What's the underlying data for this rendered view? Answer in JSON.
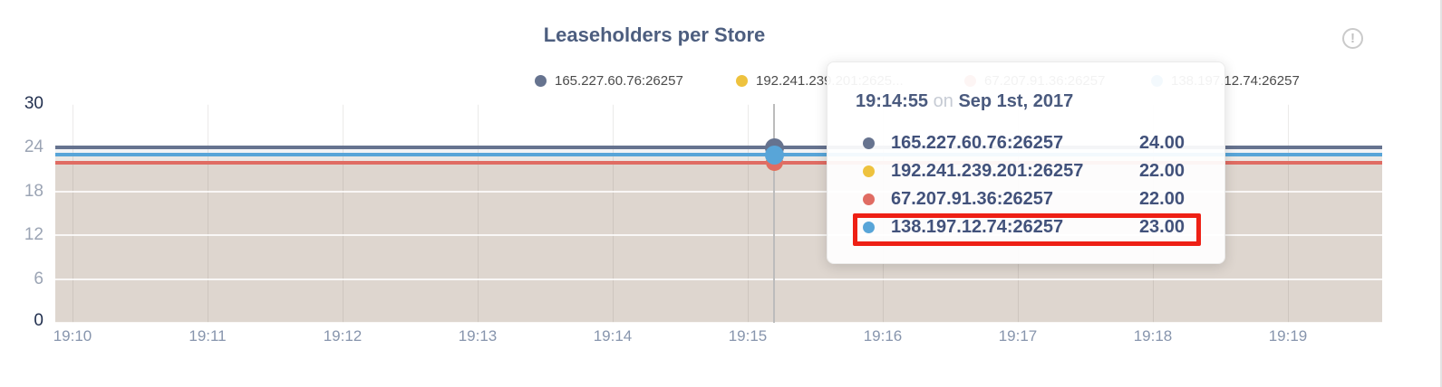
{
  "header": {
    "title": "Leaseholders per Store",
    "info_icon": "!"
  },
  "legend": {
    "items": [
      {
        "label": "165.227.60.76:26257",
        "color": "#66738f"
      },
      {
        "label": "192.241.239.201:2625...",
        "color": "#eec23e"
      },
      {
        "label": "67.207.91.36:26257",
        "color": "#e06c63"
      },
      {
        "label": "138.197.12.74:26257",
        "color": "#58a5d8"
      }
    ]
  },
  "chart_data": {
    "type": "line",
    "title": "Leaseholders per Store",
    "x_ticks": [
      "19:10",
      "19:11",
      "19:12",
      "19:13",
      "19:14",
      "19:15",
      "19:16",
      "19:17",
      "19:18",
      "19:19"
    ],
    "y_ticks": [
      30,
      24,
      18,
      12,
      6,
      0
    ],
    "ylim": [
      0,
      30
    ],
    "grid": true,
    "legend_position": "top",
    "series": [
      {
        "name": "165.227.60.76:26257",
        "color": "#66738f",
        "value": 24,
        "shape": "constant"
      },
      {
        "name": "192.241.239.201:26257",
        "color": "#eec23e",
        "value": 22,
        "shape": "constant"
      },
      {
        "name": "67.207.91.36:26257",
        "color": "#e06c63",
        "value": 22,
        "shape": "constant"
      },
      {
        "name": "138.197.12.74:26257",
        "color": "#58a5d8",
        "value": 23,
        "shape": "constant"
      }
    ],
    "area_colors": {
      "under_22": "#ded6cf",
      "band_22_23": "#ebe8e4",
      "band_23_24": "#f2f3f5"
    },
    "hover_time": "19:14:55"
  },
  "tooltip": {
    "time": "19:14:55",
    "conjunction": "on",
    "date": "Sep 1st, 2017",
    "rows": [
      {
        "name": "165.227.60.76:26257",
        "value": "24.00",
        "color": "#66738f"
      },
      {
        "name": "192.241.239.201:26257",
        "value": "22.00",
        "color": "#eec23e"
      },
      {
        "name": "67.207.91.36:26257",
        "value": "22.00",
        "color": "#e06c63"
      },
      {
        "name": "138.197.12.74:26257",
        "value": "23.00",
        "color": "#58a5d8"
      }
    ],
    "highlight_index": 3,
    "highlight_color": "#ee2015"
  }
}
